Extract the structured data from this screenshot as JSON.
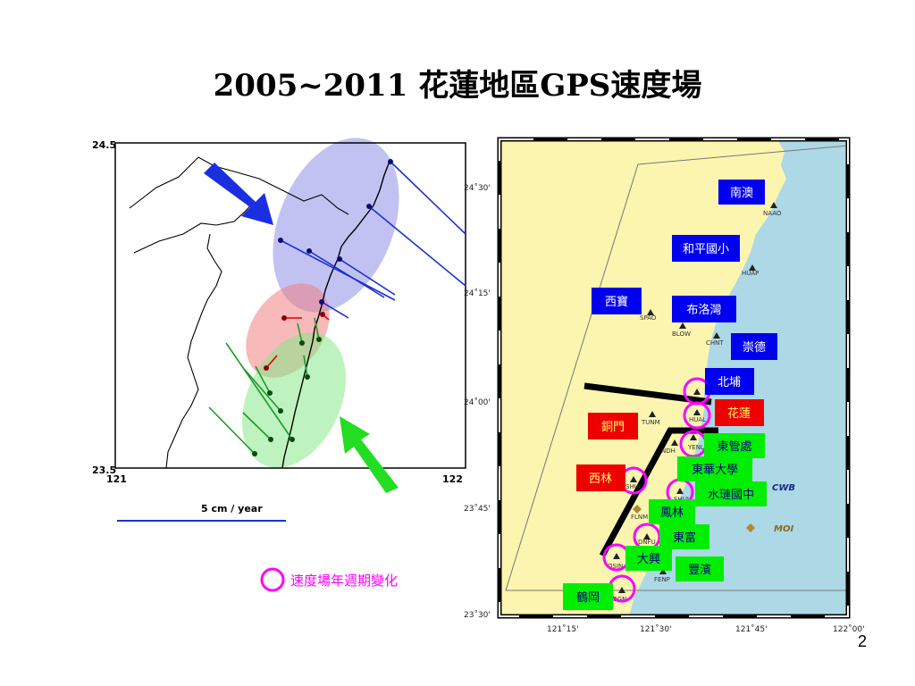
{
  "slide": {
    "title": "2005~2011 花蓮地區GPS速度場",
    "page_number": "2"
  },
  "left_map": {
    "lat_top": "24.5",
    "lat_bottom": "23.5",
    "lon_left": "121",
    "lon_right": "122",
    "scale_label": "5 cm / year",
    "legend_text": "速度場年週期變化",
    "colors": {
      "blue_zone": "#8f8fe8",
      "red_zone": "#f08080",
      "green_zone": "#88e888",
      "blue_vectors": "#1c2fd6",
      "red_vectors": "#e00000",
      "green_vectors": "#1a9a2a",
      "blue_arrow": "#1c2fe0",
      "green_arrow": "#22dd22",
      "legend_circle": "#ff00ff"
    }
  },
  "right_map": {
    "lat_labels": [
      "24˚30'",
      "24˚15'",
      "24˚00'",
      "23˚45'",
      "23˚30'"
    ],
    "lon_labels": [
      "121˚15'",
      "121˚30'",
      "121˚45'",
      "122˚00'"
    ],
    "station_codes": [
      "NAAO",
      "HUAP",
      "SPAO",
      "BLOW",
      "CHNT",
      "HUAL",
      "TUNM",
      "YENL",
      "NDH",
      "SHUL",
      "SHUI",
      "FLNM",
      "DNFU",
      "OSIN",
      "FENP",
      "BGN"
    ],
    "map_labels": {
      "cwb": "CWB",
      "moi": "MOI"
    },
    "boxes": {
      "nanao": "南澳",
      "heping": "和平國小",
      "xibao": "西寶",
      "buluowan": "布洛灣",
      "chongde": "崇德",
      "beipu": "北埔",
      "hualien": "花蓮",
      "tongmen": "銅門",
      "dongguanchu": "東管處",
      "donghua": "東華大學",
      "xilin": "西林",
      "shuilian": "水璉國中",
      "fenglin": "鳳林",
      "dongfu": "東富",
      "daxing": "大興",
      "fengbin": "豐濱",
      "hegang": "鶴岡"
    },
    "colors": {
      "land": "#fbf5b0",
      "sea": "#add8e6",
      "blue_box": "#0000ee",
      "red_box": "#ee0000",
      "green_box": "#00ee00",
      "blue_box_text": "#ffffff",
      "red_box_text": "#ffff66",
      "green_box_text": "#000080",
      "fault_line": "#000000",
      "circle": "#ff00ff"
    }
  }
}
